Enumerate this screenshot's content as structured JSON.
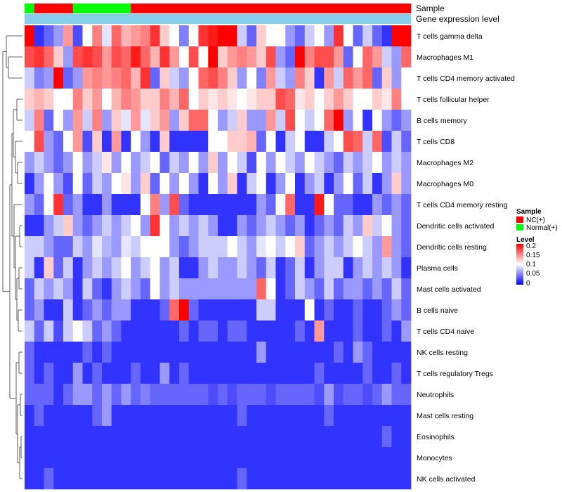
{
  "chart_data": {
    "type": "heatmap",
    "rows": [
      "T cells gamma delta",
      "Macrophages M1",
      "T cells CD4 memory activated",
      "T cells follicular helper",
      "B cells memory",
      "T cells CD8",
      "Macrophages M2",
      "Macrophages M0",
      "T cells CD4 memory resting",
      "Dendritic cells activated",
      "Dendritic cells resting",
      "Plasma cells",
      "Mast cells activated",
      "B cells naive",
      "T cells CD4 naive",
      "NK cells resting",
      "T cells regulatory  Tregs",
      "Neutrophils",
      "Mast cells resting",
      "Eosinophils",
      "Monocytes",
      "NK cells activated"
    ],
    "sample_groups": [
      "N",
      "C",
      "C",
      "C",
      "C",
      "N",
      "N",
      "N",
      "N",
      "N",
      "N",
      "C",
      "C",
      "C",
      "C",
      "C",
      "C",
      "C",
      "C",
      "C",
      "C",
      "C",
      "C",
      "C",
      "C",
      "C",
      "C",
      "C",
      "C",
      "C",
      "C",
      "C",
      "C",
      "C",
      "C",
      "C",
      "C",
      "C",
      "C",
      "C"
    ],
    "gene_expression_level": [
      0,
      0,
      0,
      0,
      0,
      0,
      0,
      0,
      0,
      0,
      0,
      0,
      0,
      0,
      0,
      0,
      0,
      0,
      0,
      0,
      0,
      0,
      0,
      0,
      0,
      0,
      0,
      0,
      0,
      0,
      0,
      0,
      0,
      0,
      0,
      0,
      0,
      0,
      0,
      0
    ],
    "value_range": [
      0,
      0.2
    ],
    "matrix": [
      [
        0.2,
        0.02,
        0.04,
        0.06,
        0.14,
        0.03,
        0.1,
        0.15,
        0.09,
        0.16,
        0.13,
        0.14,
        0.15,
        0.18,
        0.12,
        0.1,
        0.05,
        0.1,
        0.18,
        0.19,
        0.2,
        0.2,
        0.08,
        0.04,
        0.12,
        0.1,
        0.1,
        0.06,
        0.04,
        0.08,
        0.1,
        0.06,
        0.18,
        0.1,
        0.04,
        0.08,
        0.04,
        0.02,
        0.2,
        0.2
      ],
      [
        0.17,
        0.18,
        0.16,
        0.12,
        0.06,
        0.17,
        0.18,
        0.17,
        0.14,
        0.17,
        0.16,
        0.19,
        0.16,
        0.13,
        0.18,
        0.14,
        0.1,
        0.17,
        0.1,
        0.2,
        0.12,
        0.14,
        0.15,
        0.14,
        0.12,
        0.17,
        0.06,
        0.04,
        0.2,
        0.15,
        0.17,
        0.17,
        0.14,
        0.04,
        0.1,
        0.16,
        0.14,
        0.08,
        0.06,
        0.16
      ],
      [
        0.08,
        0.05,
        0.06,
        0.2,
        0.04,
        0.06,
        0.14,
        0.15,
        0.14,
        0.15,
        0.16,
        0.13,
        0.18,
        0.04,
        0.12,
        0.08,
        0.06,
        0.1,
        0.16,
        0.17,
        0.15,
        0.12,
        0.06,
        0.1,
        0.05,
        0.14,
        0.08,
        0.06,
        0.15,
        0.12,
        0.02,
        0.14,
        0.08,
        0.16,
        0.14,
        0.16,
        0.04,
        0.12,
        0.06,
        0.1
      ],
      [
        0.12,
        0.13,
        0.12,
        0.1,
        0.1,
        0.15,
        0.12,
        0.14,
        0.1,
        0.13,
        0.15,
        0.14,
        0.12,
        0.12,
        0.15,
        0.13,
        0.16,
        0.1,
        0.12,
        0.11,
        0.12,
        0.11,
        0.1,
        0.11,
        0.12,
        0.12,
        0.17,
        0.16,
        0.11,
        0.12,
        0.1,
        0.12,
        0.14,
        0.12,
        0.1,
        0.1,
        0.12,
        0.11,
        0.15,
        0.1
      ],
      [
        0.08,
        0.15,
        0.04,
        0.1,
        0.06,
        0.14,
        0.08,
        0.15,
        0.06,
        0.12,
        0.09,
        0.14,
        0.09,
        0.12,
        0.14,
        0.06,
        0.12,
        0.16,
        0.16,
        0.1,
        0.06,
        0.08,
        0.12,
        0.06,
        0.06,
        0.14,
        0.08,
        0.17,
        0.1,
        0.08,
        0.1,
        0.16,
        0.2,
        0.06,
        0.1,
        0.02,
        0.1,
        0.06,
        0.04,
        0.06
      ],
      [
        0.1,
        0.17,
        0.06,
        0.04,
        0.1,
        0.14,
        0.03,
        0.12,
        0.02,
        0.14,
        0.02,
        0.1,
        0.06,
        0.02,
        0.12,
        0.02,
        0.02,
        0.02,
        0.02,
        0.1,
        0.1,
        0.12,
        0.12,
        0.13,
        0.04,
        0.1,
        0.02,
        0.08,
        0.1,
        0.02,
        0.02,
        0.08,
        0.1,
        0.17,
        0.16,
        0.08,
        0.16,
        0.03,
        0.08,
        0.04
      ],
      [
        0.06,
        0.08,
        0.06,
        0.04,
        0.06,
        0.1,
        0.06,
        0.08,
        0.11,
        0.06,
        0.1,
        0.06,
        0.08,
        0.1,
        0.04,
        0.08,
        0.06,
        0.1,
        0.06,
        0.12,
        0.06,
        0.1,
        0.08,
        0.03,
        0.1,
        0.06,
        0.1,
        0.08,
        0.06,
        0.1,
        0.08,
        0.06,
        0.04,
        0.08,
        0.06,
        0.08,
        0.1,
        0.06,
        0.08,
        0.06
      ],
      [
        0.02,
        0.06,
        0.1,
        0.06,
        0.03,
        0.1,
        0.04,
        0.08,
        0.06,
        0.1,
        0.11,
        0.06,
        0.12,
        0.04,
        0.1,
        0.06,
        0.1,
        0.06,
        0.02,
        0.1,
        0.06,
        0.12,
        0.02,
        0.08,
        0.1,
        0.02,
        0.06,
        0.1,
        0.02,
        0.06,
        0.08,
        0.02,
        0.06,
        0.1,
        0.04,
        0.08,
        0.02,
        0.06,
        0.12,
        0.06
      ],
      [
        0.06,
        0.04,
        0.1,
        0.18,
        0.04,
        0.06,
        0.02,
        0.02,
        0.06,
        0.02,
        0.02,
        0.02,
        0.1,
        0.15,
        0.06,
        0.17,
        0.04,
        0.02,
        0.02,
        0.02,
        0.02,
        0.02,
        0.02,
        0.02,
        0.06,
        0.04,
        0.1,
        0.16,
        0.02,
        0.02,
        0.19,
        0.1,
        0.04,
        0.04,
        0.02,
        0.02,
        0.06,
        0.04,
        0.06,
        0.04
      ],
      [
        0.02,
        0.02,
        0.06,
        0.08,
        0.12,
        0.06,
        0.04,
        0.06,
        0.08,
        0.06,
        0.08,
        0.1,
        0.06,
        0.18,
        0.1,
        0.06,
        0.08,
        0.06,
        0.08,
        0.06,
        0.02,
        0.02,
        0.06,
        0.04,
        0.06,
        0.08,
        0.06,
        0.04,
        0.06,
        0.02,
        0.04,
        0.06,
        0.04,
        0.08,
        0.06,
        0.12,
        0.08,
        0.1,
        0.06,
        0.04
      ],
      [
        0.08,
        0.08,
        0.06,
        0.04,
        0.04,
        0.08,
        0.06,
        0.09,
        0.07,
        0.06,
        0.09,
        0.08,
        0.1,
        0.1,
        0.1,
        0.06,
        0.04,
        0.06,
        0.08,
        0.08,
        0.08,
        0.1,
        0.08,
        0.06,
        0.09,
        0.1,
        0.08,
        0.1,
        0.12,
        0.04,
        0.06,
        0.08,
        0.06,
        0.08,
        0.1,
        0.08,
        0.06,
        0.14,
        0.06,
        0.04
      ],
      [
        0.08,
        0.02,
        0.12,
        0.04,
        0.08,
        0.02,
        0.06,
        0.08,
        0.06,
        0.08,
        0.1,
        0.06,
        0.08,
        0.1,
        0.06,
        0.08,
        0.02,
        0.02,
        0.06,
        0.08,
        0.06,
        0.06,
        0.08,
        0.06,
        0.04,
        0.08,
        0.02,
        0.04,
        0.08,
        0.02,
        0.06,
        0.08,
        0.08,
        0.02,
        0.06,
        0.08,
        0.06,
        0.08,
        0.06,
        0.02
      ],
      [
        0.04,
        0.08,
        0.06,
        0.08,
        0.06,
        0.02,
        0.08,
        0.04,
        0.02,
        0.06,
        0.08,
        0.06,
        0.04,
        0.1,
        0.06,
        0.08,
        0.06,
        0.06,
        0.06,
        0.06,
        0.06,
        0.06,
        0.06,
        0.06,
        0.16,
        0.1,
        0.02,
        0.04,
        0.08,
        0.06,
        0.04,
        0.08,
        0.04,
        0.06,
        0.06,
        0.04,
        0.06,
        0.04,
        0.08,
        0.04
      ],
      [
        0.04,
        0.06,
        0.02,
        0.02,
        0.08,
        0.02,
        0.04,
        0.06,
        0.04,
        0.06,
        0.06,
        0.02,
        0.02,
        0.02,
        0.04,
        0.16,
        0.2,
        0.04,
        0.02,
        0.02,
        0.02,
        0.02,
        0.02,
        0.02,
        0.08,
        0.08,
        0.02,
        0.02,
        0.02,
        0.1,
        0.02,
        0.04,
        0.02,
        0.02,
        0.04,
        0.02,
        0.02,
        0.04,
        0.06,
        0.04
      ],
      [
        0.08,
        0.04,
        0.08,
        0.03,
        0.08,
        0.1,
        0.08,
        0.04,
        0.06,
        0.04,
        0.02,
        0.02,
        0.02,
        0.02,
        0.02,
        0.02,
        0.04,
        0.02,
        0.04,
        0.04,
        0.02,
        0.04,
        0.04,
        0.02,
        0.02,
        0.02,
        0.02,
        0.02,
        0.04,
        0.02,
        0.14,
        0.02,
        0.02,
        0.02,
        0.04,
        0.02,
        0.02,
        0.04,
        0.02,
        0.06
      ],
      [
        0.04,
        0.02,
        0.02,
        0.02,
        0.02,
        0.02,
        0.04,
        0.02,
        0.04,
        0.02,
        0.02,
        0.02,
        0.02,
        0.02,
        0.02,
        0.02,
        0.02,
        0.02,
        0.02,
        0.02,
        0.02,
        0.02,
        0.02,
        0.02,
        0.06,
        0.02,
        0.02,
        0.02,
        0.02,
        0.02,
        0.02,
        0.02,
        0.04,
        0.02,
        0.06,
        0.04,
        0.02,
        0.02,
        0.02,
        0.02
      ],
      [
        0.04,
        0.02,
        0.04,
        0.02,
        0.02,
        0.06,
        0.02,
        0.04,
        0.02,
        0.02,
        0.02,
        0.04,
        0.02,
        0.02,
        0.06,
        0.02,
        0.04,
        0.02,
        0.02,
        0.02,
        0.02,
        0.02,
        0.02,
        0.02,
        0.02,
        0.02,
        0.02,
        0.02,
        0.02,
        0.02,
        0.04,
        0.02,
        0.02,
        0.02,
        0.02,
        0.04,
        0.02,
        0.02,
        0.04,
        0.02
      ],
      [
        0.04,
        0.04,
        0.04,
        0.02,
        0.04,
        0.06,
        0.06,
        0.04,
        0.06,
        0.04,
        0.06,
        0.04,
        0.05,
        0.04,
        0.04,
        0.04,
        0.04,
        0.04,
        0.04,
        0.03,
        0.04,
        0.03,
        0.04,
        0.04,
        0.04,
        0.03,
        0.04,
        0.04,
        0.04,
        0.04,
        0.03,
        0.06,
        0.03,
        0.04,
        0.04,
        0.03,
        0.04,
        0.06,
        0.04,
        0.04
      ],
      [
        0.02,
        0.04,
        0.02,
        0.02,
        0.02,
        0.02,
        0.02,
        0.04,
        0.06,
        0.02,
        0.02,
        0.02,
        0.02,
        0.02,
        0.02,
        0.02,
        0.02,
        0.02,
        0.02,
        0.02,
        0.02,
        0.02,
        0.04,
        0.02,
        0.02,
        0.02,
        0.02,
        0.02,
        0.02,
        0.02,
        0.02,
        0.04,
        0.02,
        0.02,
        0.02,
        0.02,
        0.02,
        0.02,
        0.02,
        0.02
      ],
      [
        0.02,
        0.02,
        0.02,
        0.02,
        0.02,
        0.02,
        0.02,
        0.02,
        0.02,
        0.02,
        0.02,
        0.02,
        0.02,
        0.02,
        0.02,
        0.02,
        0.02,
        0.02,
        0.02,
        0.02,
        0.02,
        0.02,
        0.02,
        0.02,
        0.02,
        0.02,
        0.02,
        0.02,
        0.02,
        0.02,
        0.02,
        0.02,
        0.02,
        0.02,
        0.02,
        0.02,
        0.02,
        0.04,
        0.02,
        0.02
      ],
      [
        0.02,
        0.02,
        0.02,
        0.02,
        0.02,
        0.02,
        0.02,
        0.02,
        0.02,
        0.02,
        0.02,
        0.02,
        0.02,
        0.02,
        0.02,
        0.02,
        0.02,
        0.02,
        0.02,
        0.02,
        0.02,
        0.02,
        0.02,
        0.02,
        0.02,
        0.02,
        0.02,
        0.02,
        0.02,
        0.02,
        0.02,
        0.02,
        0.02,
        0.02,
        0.02,
        0.02,
        0.02,
        0.02,
        0.02,
        0.02
      ],
      [
        0.02,
        0.02,
        0.04,
        0.02,
        0.02,
        0.02,
        0.02,
        0.02,
        0.02,
        0.02,
        0.02,
        0.02,
        0.02,
        0.02,
        0.02,
        0.02,
        0.02,
        0.02,
        0.02,
        0.02,
        0.02,
        0.02,
        0.04,
        0.02,
        0.02,
        0.02,
        0.02,
        0.02,
        0.02,
        0.02,
        0.02,
        0.02,
        0.02,
        0.02,
        0.02,
        0.02,
        0.02,
        0.02,
        0.02,
        0.02
      ]
    ],
    "annotation_tracks": [
      "Sample",
      "Gene expression level"
    ],
    "legends": {
      "sample": {
        "title": "Sample",
        "items": [
          {
            "label": "NC(+)",
            "color": "#FF0000"
          },
          {
            "label": "Normal(+)",
            "color": "#00FF00"
          }
        ]
      },
      "level": {
        "title": "Level",
        "ticks": [
          "0.2",
          "0.15",
          "0.1",
          "0.05",
          "0"
        ]
      }
    },
    "colors": {
      "low": "#0000FF",
      "mid": "#FFFFFF",
      "high": "#FF0000",
      "nc": "#FF0000",
      "normal": "#00FF00",
      "gene_expression": "#87CEEB"
    }
  }
}
